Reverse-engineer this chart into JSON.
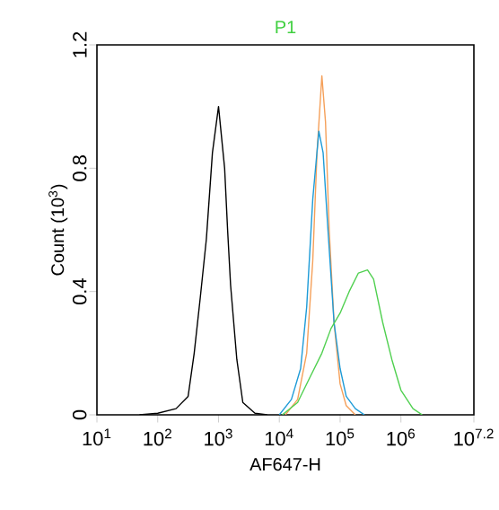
{
  "chart_data": {
    "type": "line",
    "title": "P1",
    "xlabel": "AF647-H",
    "ylabel": "Count (10$^{3}$)",
    "log": "x",
    "xlim": [
      10,
      15848931.9
    ],
    "ylim": [
      0,
      1.2
    ],
    "xticks": [
      {
        "value": 10,
        "label": "10$^{1}$"
      },
      {
        "value": 100,
        "label": "10$^{2}$"
      },
      {
        "value": 1000,
        "label": "10$^{3}$"
      },
      {
        "value": 10000,
        "label": "10$^{4}$"
      },
      {
        "value": 100000,
        "label": "10$^{5}$"
      },
      {
        "value": 1000000,
        "label": "10$^{6}$"
      },
      {
        "value": 15848931.9,
        "label": "10$^{7.2}$"
      }
    ],
    "yticks": [
      0,
      0.4,
      0.8,
      1.2
    ],
    "series": [
      {
        "color": "#000000",
        "x": [
          50.1,
          100,
          200,
          316,
          398,
          501,
          631,
          794,
          1000,
          1260,
          1410,
          1580,
          2000,
          2510,
          3980,
          6310
        ],
        "values": [
          0,
          0.005,
          0.02,
          0.06,
          0.2,
          0.38,
          0.57,
          0.85,
          1.0,
          0.8,
          0.6,
          0.42,
          0.18,
          0.04,
          0.005,
          0
        ]
      },
      {
        "color": "#f5a05a",
        "x": [
          12600,
          20000,
          28200,
          35500,
          41700,
          50100,
          57500,
          66100,
          79400,
          100000,
          126000,
          178000
        ],
        "values": [
          0,
          0.05,
          0.2,
          0.5,
          0.85,
          1.1,
          0.95,
          0.6,
          0.3,
          0.1,
          0.03,
          0
        ]
      },
      {
        "color": "#1e9bd7",
        "x": [
          10000,
          15800,
          22400,
          28200,
          35500,
          44700,
          52500,
          63100,
          79400,
          100000,
          126000,
          178000,
          251000
        ],
        "values": [
          0,
          0.05,
          0.15,
          0.35,
          0.7,
          0.92,
          0.85,
          0.6,
          0.3,
          0.15,
          0.06,
          0.02,
          0
        ]
      },
      {
        "color": "#50d050",
        "x": [
          11200,
          20000,
          31600,
          50100,
          70800,
          100000,
          141000,
          200000,
          282000,
          355000,
          501000,
          708000,
          1000000,
          1580000,
          2240000
        ],
        "values": [
          0,
          0.04,
          0.12,
          0.2,
          0.28,
          0.33,
          0.4,
          0.46,
          0.47,
          0.44,
          0.3,
          0.18,
          0.08,
          0.02,
          0
        ]
      }
    ]
  }
}
